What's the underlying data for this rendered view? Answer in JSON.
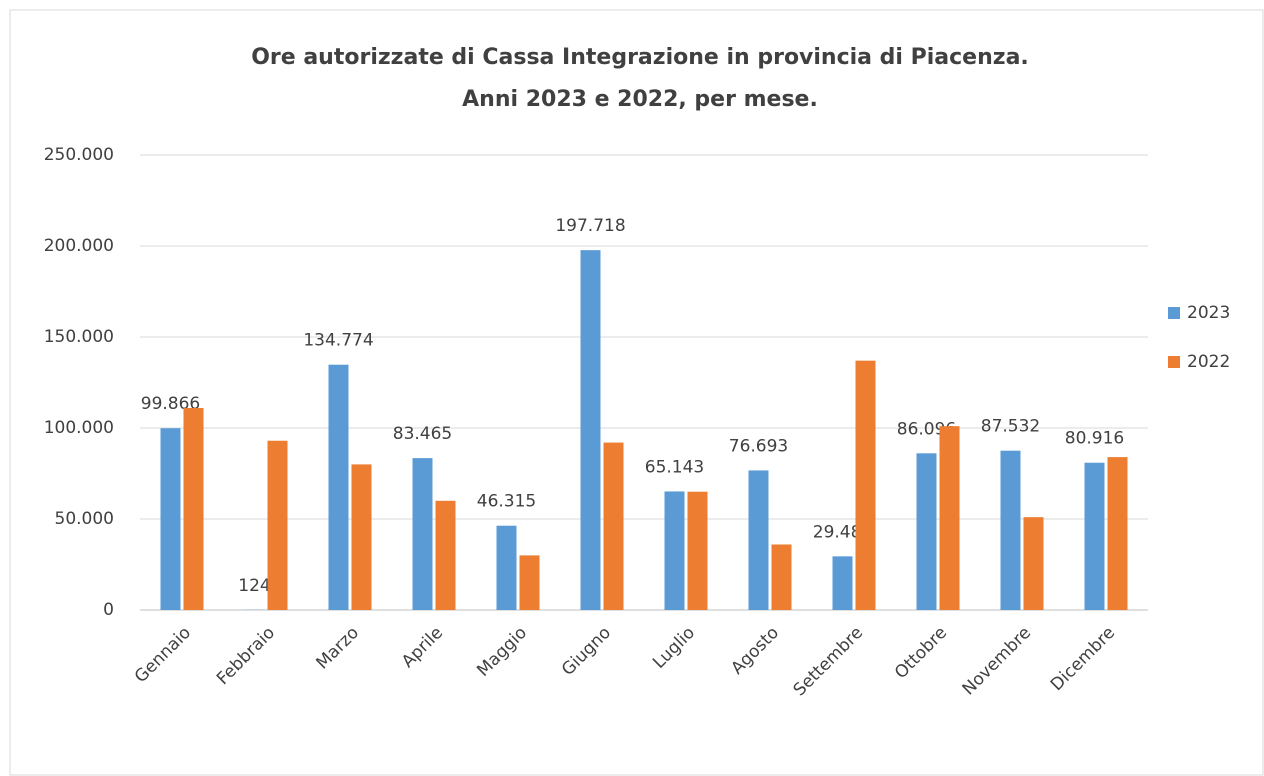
{
  "chart_data": {
    "type": "bar",
    "title": "Ore autorizzate di Cassa Integrazione in provincia di Piacenza.",
    "subtitle": "Anni 2023 e 2022, per mese.",
    "categories": [
      "Gennaio",
      "Febbraio",
      "Marzo",
      "Aprile",
      "Maggio",
      "Giugno",
      "Luglio",
      "Agosto",
      "Settembre",
      "Ottobre",
      "Novembre",
      "Dicembre"
    ],
    "series": [
      {
        "name": "2023",
        "color": "#5b9bd5",
        "values": [
          99866,
          124,
          134774,
          83465,
          46315,
          197718,
          65143,
          76693,
          29484,
          86096,
          87532,
          80916
        ],
        "value_labels": [
          "99.866",
          "124",
          "134.774",
          "83.465",
          "46.315",
          "197.718",
          "65.143",
          "76.693",
          "29.484",
          "86.096",
          "87.532",
          "80.916"
        ]
      },
      {
        "name": "2022",
        "color": "#ed7d31",
        "values": [
          111000,
          93000,
          80000,
          60000,
          30000,
          92000,
          65000,
          36000,
          137000,
          101000,
          51000,
          84000
        ]
      }
    ],
    "ylim": [
      0,
      250000
    ],
    "yticks": [
      0,
      {
        "value": 50000,
        "label": "50.000"
      },
      {
        "value": 100000,
        "label": "100.000"
      },
      {
        "value": 150000,
        "label": "150.000"
      },
      {
        "value": 200000,
        "label": "200.000"
      },
      {
        "value": 250000,
        "label": "250.000"
      }
    ],
    "grid": true,
    "legend": "right"
  }
}
